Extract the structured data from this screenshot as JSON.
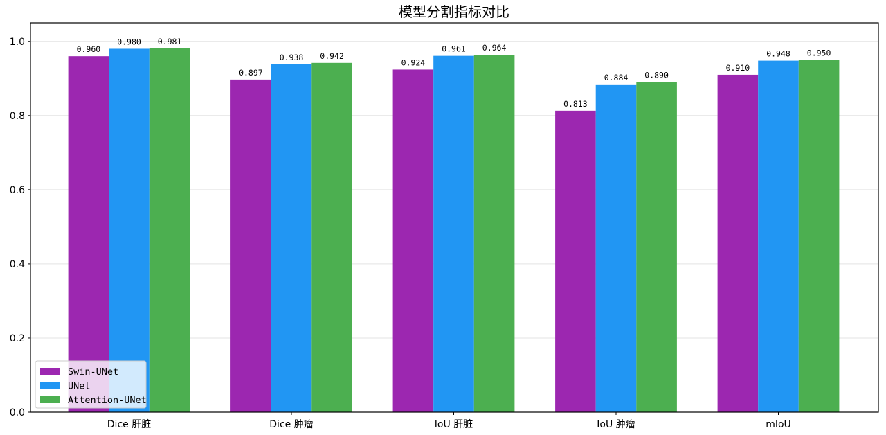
{
  "chart_data": {
    "type": "bar",
    "title": "模型分割指标对比",
    "xlabel": "",
    "ylabel": "",
    "categories": [
      "Dice 肝脏",
      "Dice 肿瘤",
      "IoU 肝脏",
      "IoU 肿瘤",
      "mIoU"
    ],
    "series": [
      {
        "name": "Swin-UNet",
        "color": "#9c27b0",
        "values": [
          0.96,
          0.897,
          0.924,
          0.813,
          0.91
        ]
      },
      {
        "name": "UNet",
        "color": "#2196f3",
        "values": [
          0.98,
          0.938,
          0.961,
          0.884,
          0.948
        ]
      },
      {
        "name": "Attention-UNet",
        "color": "#4caf50",
        "values": [
          0.981,
          0.942,
          0.964,
          0.89,
          0.95
        ]
      }
    ],
    "value_labels": [
      [
        "0.960",
        "0.897",
        "0.924",
        "0.813",
        "0.910"
      ],
      [
        "0.980",
        "0.938",
        "0.961",
        "0.884",
        "0.948"
      ],
      [
        "0.981",
        "0.942",
        "0.964",
        "0.890",
        "0.950"
      ]
    ],
    "ylim": [
      0.0,
      1.05
    ],
    "yticks": [
      0.0,
      0.2,
      0.4,
      0.6,
      0.8,
      1.0
    ],
    "ytick_labels": [
      "0.0",
      "0.2",
      "0.4",
      "0.6",
      "0.8",
      "1.0"
    ],
    "grid": "y-axis",
    "legend_position": "lower-left"
  }
}
